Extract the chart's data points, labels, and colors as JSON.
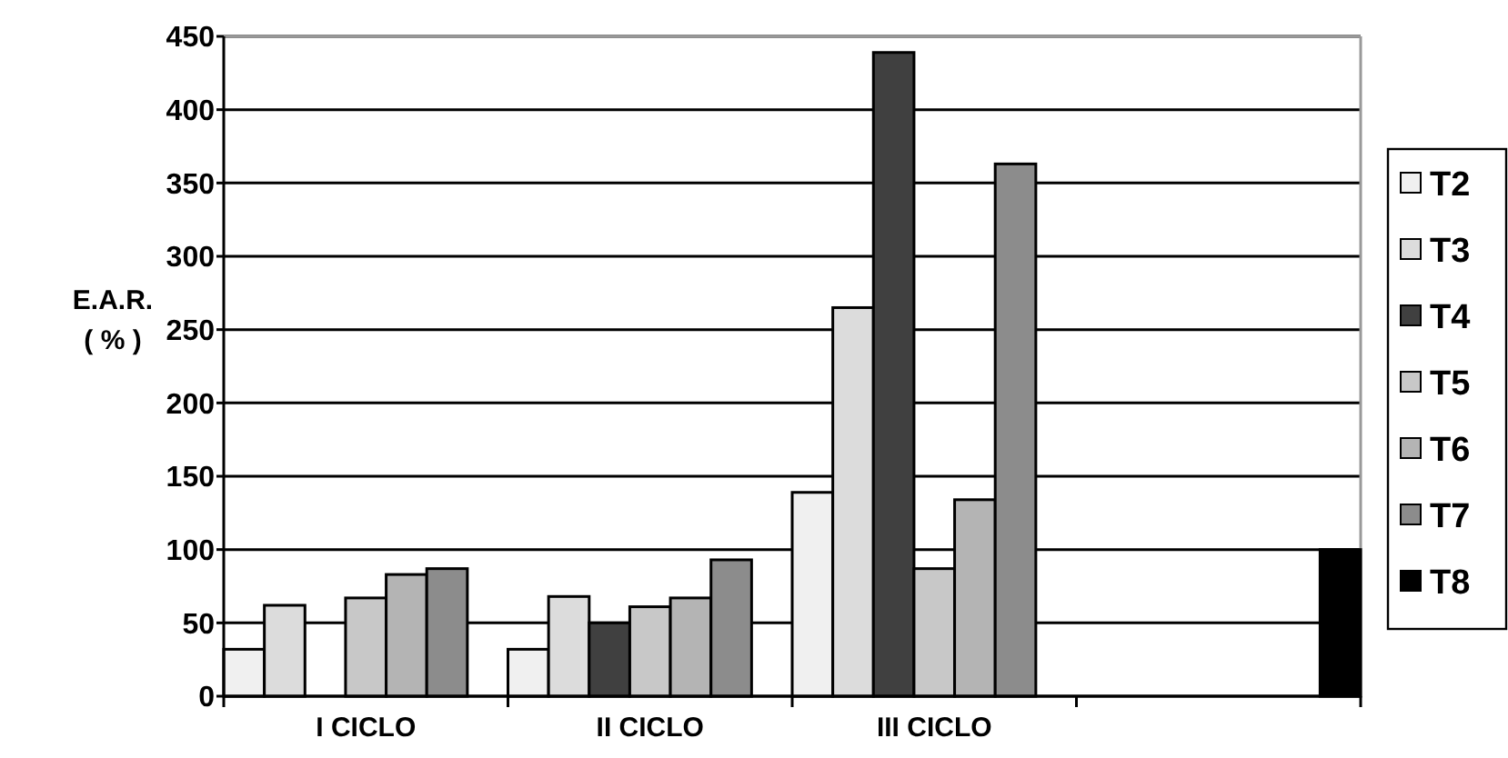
{
  "chart_data": {
    "type": "bar",
    "ylabel": "E.A.R.\n( % )",
    "categories": [
      "I CICLO",
      "II CICLO",
      "III CICLO",
      null
    ],
    "ylim": [
      0,
      450
    ],
    "yticks": [
      0,
      50,
      100,
      150,
      200,
      250,
      300,
      350,
      400,
      450
    ],
    "grid": "y",
    "legend": "right",
    "series": [
      {
        "name": "T2",
        "color": "#f0f0f0",
        "values": [
          32,
          32,
          139,
          null
        ]
      },
      {
        "name": "T3",
        "color": "#dcdcdc",
        "values": [
          62,
          68,
          265,
          null
        ]
      },
      {
        "name": "T4",
        "color": "#404040",
        "values": [
          null,
          50,
          439,
          null
        ]
      },
      {
        "name": "T5",
        "color": "#c8c8c8",
        "values": [
          67,
          61,
          87,
          null
        ]
      },
      {
        "name": "T6",
        "color": "#b4b4b4",
        "values": [
          83,
          67,
          134,
          null
        ]
      },
      {
        "name": "T7",
        "color": "#8c8c8c",
        "values": [
          87,
          93,
          363,
          null
        ]
      },
      {
        "name": "T8",
        "color": "#000000",
        "values": [
          null,
          null,
          null,
          100
        ]
      }
    ]
  }
}
